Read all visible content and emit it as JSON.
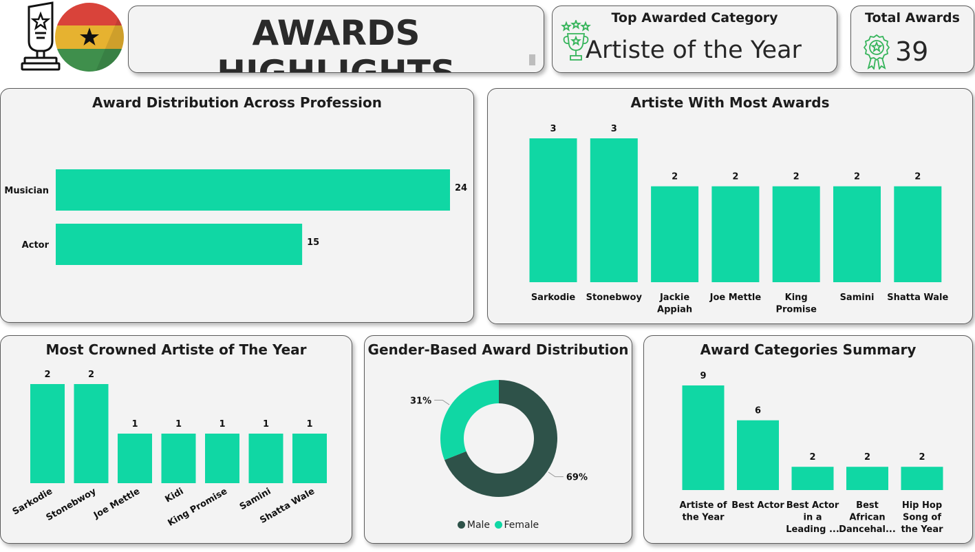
{
  "header": {
    "title": "AWARDS HIGHLIGHTS"
  },
  "kpis": {
    "top_category": {
      "label": "Top Awarded Category",
      "value": "Artiste of the Year"
    },
    "total_awards": {
      "label": "Total Awards",
      "value": "39"
    }
  },
  "colors": {
    "bar": "#10d7a4",
    "male": "#2e5249",
    "female": "#10d7a4",
    "icon": "#35b45a"
  },
  "icons": [
    "trophy-icon",
    "ghana-flag-icon",
    "stars-trophy-icon",
    "award-badge-icon"
  ],
  "chart_data": [
    {
      "id": "profession",
      "type": "bar",
      "orientation": "horizontal",
      "title": "Award Distribution Across Profession",
      "categories": [
        "Musician",
        "Actor"
      ],
      "values": [
        24,
        15
      ]
    },
    {
      "id": "most_awards",
      "type": "bar",
      "title": "Artiste With Most Awards",
      "categories": [
        "Sarkodie",
        "Stonebwoy",
        "Jackie Appiah",
        "Joe Mettle",
        "King Promise",
        "Samini",
        "Shatta Wale"
      ],
      "values": [
        3,
        3,
        2,
        2,
        2,
        2,
        2
      ]
    },
    {
      "id": "crowned",
      "type": "bar",
      "title": "Most Crowned Artiste of The Year",
      "categories": [
        "Sarkodie",
        "Stonebwoy",
        "Joe Mettle",
        "Kidi",
        "King Promise",
        "Samini",
        "Shatta Wale"
      ],
      "values": [
        2,
        2,
        1,
        1,
        1,
        1,
        1
      ]
    },
    {
      "id": "gender",
      "type": "pie",
      "title": "Gender-Based Award Distribution",
      "labels": [
        "Male",
        "Female"
      ],
      "values": [
        69,
        31
      ],
      "value_labels": [
        "69%",
        "31%"
      ],
      "legend": "bottom"
    },
    {
      "id": "categories",
      "type": "bar",
      "title": "Award Categories Summary",
      "categories": [
        "Artiste of the Year",
        "Best Actor",
        "Best Actor in a Leading ...",
        "Best African Dancehal...",
        "Hip Hop Song of the Year"
      ],
      "category_lines": [
        [
          "Artiste of",
          "the Year"
        ],
        [
          "Best Actor"
        ],
        [
          "Best Actor",
          "in a",
          "Leading ..."
        ],
        [
          "Best",
          "African",
          "Dancehal..."
        ],
        [
          "Hip Hop",
          "Song of",
          "the Year"
        ]
      ],
      "values": [
        9,
        6,
        2,
        2,
        2
      ]
    }
  ]
}
